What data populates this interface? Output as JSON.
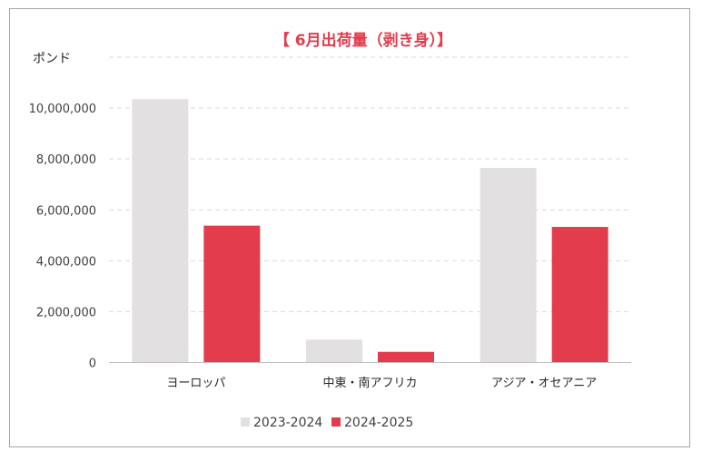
{
  "chart_data": {
    "type": "bar",
    "title": "【 6月出荷量（剥き身）】",
    "ylabel": "ポンド",
    "xlabel": "",
    "categories": [
      "ヨーロッパ",
      "中東・南アフリカ",
      "アジア・オセアニア"
    ],
    "series": [
      {
        "name": "2023-2024",
        "color": "#e2e0e0",
        "values": [
          10350000,
          900000,
          7650000
        ]
      },
      {
        "name": "2024-2025",
        "color": "#e33c4d",
        "values": [
          5380000,
          420000,
          5330000
        ]
      }
    ],
    "ylim": [
      0,
      12000000
    ],
    "yticks": [
      0,
      2000000,
      4000000,
      6000000,
      8000000,
      10000000,
      12000000
    ],
    "ytick_labels": [
      "0",
      "2,000,000",
      "4,000,000",
      "6,000,000",
      "8,000,000",
      "10,000,000",
      ""
    ],
    "grid": true,
    "legend_position": "bottom",
    "title_color": "#e33c4d"
  }
}
